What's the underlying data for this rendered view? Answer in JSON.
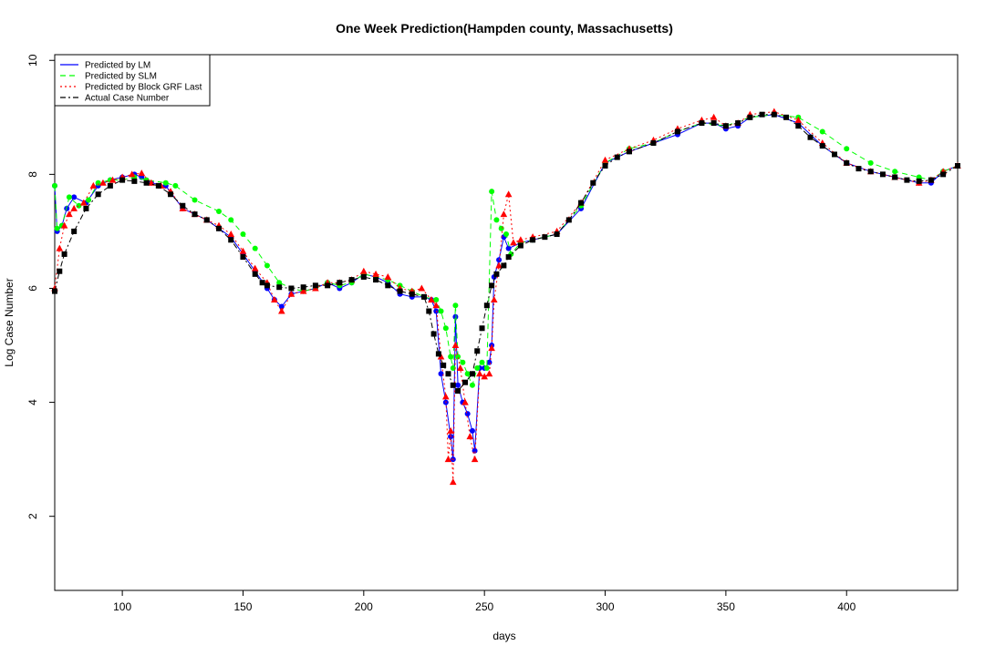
{
  "chart_data": {
    "type": "line",
    "title": "One Week Prediction(Hampden county, Massachusetts)",
    "xlabel": "days",
    "ylabel": "Log Case Number",
    "xlim": [
      72,
      446
    ],
    "ylim": [
      0.7,
      10.1
    ],
    "x_ticks": [
      100,
      150,
      200,
      250,
      300,
      350,
      400
    ],
    "y_ticks": [
      2,
      4,
      6,
      8,
      10
    ],
    "grid": false,
    "legend_position": "top-left",
    "series": [
      {
        "name": "Predicted by LM",
        "color": "#0000ff",
        "line_style": "solid",
        "marker": "circle",
        "points": [
          [
            72,
            7.8
          ],
          [
            73,
            7.0
          ],
          [
            75,
            7.1
          ],
          [
            77,
            7.4
          ],
          [
            80,
            7.6
          ],
          [
            85,
            7.5
          ],
          [
            90,
            7.8
          ],
          [
            95,
            7.9
          ],
          [
            100,
            7.95
          ],
          [
            105,
            8.0
          ],
          [
            108,
            7.95
          ],
          [
            112,
            7.85
          ],
          [
            118,
            7.8
          ],
          [
            125,
            7.4
          ],
          [
            130,
            7.3
          ],
          [
            135,
            7.2
          ],
          [
            140,
            7.05
          ],
          [
            145,
            6.9
          ],
          [
            150,
            6.6
          ],
          [
            155,
            6.3
          ],
          [
            160,
            6.0
          ],
          [
            163,
            5.8
          ],
          [
            166,
            5.68
          ],
          [
            170,
            5.9
          ],
          [
            175,
            5.95
          ],
          [
            180,
            6.0
          ],
          [
            185,
            6.1
          ],
          [
            190,
            6.0
          ],
          [
            195,
            6.1
          ],
          [
            200,
            6.25
          ],
          [
            205,
            6.2
          ],
          [
            210,
            6.1
          ],
          [
            215,
            5.9
          ],
          [
            220,
            5.85
          ],
          [
            225,
            5.85
          ],
          [
            228,
            5.8
          ],
          [
            230,
            5.6
          ],
          [
            232,
            4.5
          ],
          [
            234,
            4.0
          ],
          [
            236,
            3.4
          ],
          [
            237,
            3.0
          ],
          [
            238,
            5.5
          ],
          [
            239,
            4.3
          ],
          [
            241,
            4.0
          ],
          [
            243,
            3.8
          ],
          [
            245,
            3.5
          ],
          [
            246,
            3.15
          ],
          [
            248,
            4.6
          ],
          [
            250,
            4.6
          ],
          [
            252,
            4.7
          ],
          [
            253,
            5.0
          ],
          [
            254,
            6.2
          ],
          [
            256,
            6.5
          ],
          [
            258,
            6.9
          ],
          [
            260,
            6.7
          ],
          [
            265,
            6.8
          ],
          [
            270,
            6.85
          ],
          [
            280,
            6.95
          ],
          [
            290,
            7.4
          ],
          [
            300,
            8.2
          ],
          [
            310,
            8.4
          ],
          [
            320,
            8.55
          ],
          [
            330,
            8.7
          ],
          [
            340,
            8.9
          ],
          [
            345,
            8.9
          ],
          [
            350,
            8.8
          ],
          [
            355,
            8.85
          ],
          [
            360,
            9.0
          ],
          [
            370,
            9.05
          ],
          [
            380,
            8.9
          ],
          [
            390,
            8.5
          ],
          [
            400,
            8.2
          ],
          [
            410,
            8.05
          ],
          [
            420,
            7.95
          ],
          [
            430,
            7.85
          ],
          [
            435,
            7.85
          ],
          [
            440,
            8.05
          ],
          [
            446,
            8.15
          ]
        ]
      },
      {
        "name": "Predicted by SLM",
        "color": "#00ff00",
        "line_style": "dashed",
        "marker": "circle",
        "points": [
          [
            72,
            7.8
          ],
          [
            73,
            7.05
          ],
          [
            75,
            7.1
          ],
          [
            78,
            7.6
          ],
          [
            82,
            7.45
          ],
          [
            86,
            7.55
          ],
          [
            90,
            7.85
          ],
          [
            95,
            7.9
          ],
          [
            100,
            7.9
          ],
          [
            105,
            7.95
          ],
          [
            110,
            7.9
          ],
          [
            118,
            7.85
          ],
          [
            122,
            7.8
          ],
          [
            130,
            7.55
          ],
          [
            140,
            7.35
          ],
          [
            145,
            7.2
          ],
          [
            150,
            6.95
          ],
          [
            155,
            6.7
          ],
          [
            160,
            6.4
          ],
          [
            165,
            6.1
          ],
          [
            170,
            6.0
          ],
          [
            175,
            5.95
          ],
          [
            180,
            6.0
          ],
          [
            185,
            6.1
          ],
          [
            190,
            6.05
          ],
          [
            195,
            6.1
          ],
          [
            200,
            6.25
          ],
          [
            205,
            6.2
          ],
          [
            210,
            6.15
          ],
          [
            215,
            6.05
          ],
          [
            220,
            5.95
          ],
          [
            225,
            5.85
          ],
          [
            230,
            5.8
          ],
          [
            232,
            5.6
          ],
          [
            234,
            5.3
          ],
          [
            236,
            4.8
          ],
          [
            237,
            4.6
          ],
          [
            238,
            5.7
          ],
          [
            239,
            4.8
          ],
          [
            241,
            4.7
          ],
          [
            243,
            4.5
          ],
          [
            245,
            4.3
          ],
          [
            247,
            4.6
          ],
          [
            249,
            4.7
          ],
          [
            251,
            4.6
          ],
          [
            253,
            7.7
          ],
          [
            255,
            7.2
          ],
          [
            257,
            7.05
          ],
          [
            259,
            6.95
          ],
          [
            261,
            6.6
          ],
          [
            265,
            6.8
          ],
          [
            270,
            6.85
          ],
          [
            280,
            6.95
          ],
          [
            290,
            7.45
          ],
          [
            300,
            8.2
          ],
          [
            310,
            8.45
          ],
          [
            320,
            8.55
          ],
          [
            330,
            8.75
          ],
          [
            340,
            8.9
          ],
          [
            350,
            8.85
          ],
          [
            360,
            9.0
          ],
          [
            370,
            9.05
          ],
          [
            380,
            9.0
          ],
          [
            390,
            8.75
          ],
          [
            400,
            8.45
          ],
          [
            410,
            8.2
          ],
          [
            420,
            8.05
          ],
          [
            430,
            7.95
          ],
          [
            435,
            7.9
          ],
          [
            440,
            8.05
          ],
          [
            446,
            8.15
          ]
        ]
      },
      {
        "name": "Predicted by Block GRF Last",
        "color": "#ff0000",
        "line_style": "dotted",
        "marker": "triangle",
        "points": [
          [
            72,
            6.0
          ],
          [
            74,
            6.7
          ],
          [
            76,
            7.1
          ],
          [
            78,
            7.3
          ],
          [
            80,
            7.4
          ],
          [
            84,
            7.5
          ],
          [
            88,
            7.8
          ],
          [
            92,
            7.85
          ],
          [
            96,
            7.9
          ],
          [
            100,
            7.95
          ],
          [
            104,
            8.0
          ],
          [
            108,
            8.02
          ],
          [
            112,
            7.85
          ],
          [
            116,
            7.8
          ],
          [
            120,
            7.7
          ],
          [
            125,
            7.4
          ],
          [
            130,
            7.3
          ],
          [
            135,
            7.2
          ],
          [
            140,
            7.1
          ],
          [
            145,
            6.95
          ],
          [
            150,
            6.65
          ],
          [
            155,
            6.35
          ],
          [
            160,
            6.1
          ],
          [
            163,
            5.8
          ],
          [
            166,
            5.6
          ],
          [
            170,
            5.9
          ],
          [
            175,
            5.95
          ],
          [
            180,
            6.0
          ],
          [
            185,
            6.1
          ],
          [
            190,
            6.1
          ],
          [
            195,
            6.15
          ],
          [
            200,
            6.3
          ],
          [
            205,
            6.25
          ],
          [
            210,
            6.2
          ],
          [
            215,
            6.0
          ],
          [
            220,
            5.95
          ],
          [
            224,
            6.0
          ],
          [
            228,
            5.8
          ],
          [
            230,
            5.7
          ],
          [
            232,
            4.8
          ],
          [
            234,
            4.1
          ],
          [
            235,
            3.0
          ],
          [
            236,
            3.5
          ],
          [
            237,
            2.6
          ],
          [
            238,
            5.0
          ],
          [
            240,
            4.6
          ],
          [
            242,
            4.0
          ],
          [
            244,
            3.4
          ],
          [
            246,
            3.0
          ],
          [
            248,
            4.5
          ],
          [
            250,
            4.45
          ],
          [
            252,
            4.5
          ],
          [
            253,
            4.95
          ],
          [
            254,
            5.8
          ],
          [
            256,
            6.4
          ],
          [
            258,
            7.3
          ],
          [
            260,
            7.65
          ],
          [
            262,
            6.8
          ],
          [
            265,
            6.85
          ],
          [
            270,
            6.9
          ],
          [
            280,
            7.0
          ],
          [
            290,
            7.5
          ],
          [
            300,
            8.25
          ],
          [
            310,
            8.45
          ],
          [
            320,
            8.6
          ],
          [
            330,
            8.8
          ],
          [
            340,
            8.95
          ],
          [
            345,
            9.0
          ],
          [
            350,
            8.85
          ],
          [
            355,
            8.9
          ],
          [
            360,
            9.05
          ],
          [
            370,
            9.1
          ],
          [
            380,
            8.95
          ],
          [
            390,
            8.55
          ],
          [
            400,
            8.2
          ],
          [
            410,
            8.05
          ],
          [
            420,
            7.95
          ],
          [
            430,
            7.85
          ],
          [
            435,
            7.9
          ],
          [
            440,
            8.05
          ],
          [
            446,
            8.15
          ]
        ]
      },
      {
        "name": "Actual Case Number",
        "color": "#000000",
        "line_style": "dashdot",
        "marker": "square",
        "points": [
          [
            72,
            5.95
          ],
          [
            74,
            6.3
          ],
          [
            76,
            6.6
          ],
          [
            80,
            7.0
          ],
          [
            85,
            7.4
          ],
          [
            90,
            7.65
          ],
          [
            95,
            7.8
          ],
          [
            100,
            7.9
          ],
          [
            105,
            7.88
          ],
          [
            110,
            7.85
          ],
          [
            115,
            7.8
          ],
          [
            120,
            7.65
          ],
          [
            125,
            7.45
          ],
          [
            130,
            7.3
          ],
          [
            135,
            7.2
          ],
          [
            140,
            7.05
          ],
          [
            145,
            6.85
          ],
          [
            150,
            6.55
          ],
          [
            155,
            6.25
          ],
          [
            158,
            6.1
          ],
          [
            160,
            6.05
          ],
          [
            165,
            6.02
          ],
          [
            170,
            6.0
          ],
          [
            175,
            6.02
          ],
          [
            180,
            6.05
          ],
          [
            185,
            6.05
          ],
          [
            190,
            6.1
          ],
          [
            195,
            6.15
          ],
          [
            200,
            6.2
          ],
          [
            205,
            6.15
          ],
          [
            210,
            6.05
          ],
          [
            215,
            5.95
          ],
          [
            220,
            5.9
          ],
          [
            225,
            5.85
          ],
          [
            227,
            5.6
          ],
          [
            229,
            5.2
          ],
          [
            231,
            4.85
          ],
          [
            233,
            4.65
          ],
          [
            235,
            4.5
          ],
          [
            237,
            4.3
          ],
          [
            239,
            4.2
          ],
          [
            242,
            4.35
          ],
          [
            245,
            4.5
          ],
          [
            247,
            4.9
          ],
          [
            249,
            5.3
          ],
          [
            251,
            5.7
          ],
          [
            253,
            6.05
          ],
          [
            255,
            6.25
          ],
          [
            258,
            6.4
          ],
          [
            260,
            6.55
          ],
          [
            265,
            6.75
          ],
          [
            270,
            6.85
          ],
          [
            275,
            6.9
          ],
          [
            280,
            6.95
          ],
          [
            285,
            7.2
          ],
          [
            290,
            7.5
          ],
          [
            295,
            7.85
          ],
          [
            300,
            8.15
          ],
          [
            305,
            8.3
          ],
          [
            310,
            8.4
          ],
          [
            320,
            8.55
          ],
          [
            330,
            8.75
          ],
          [
            340,
            8.9
          ],
          [
            345,
            8.9
          ],
          [
            350,
            8.85
          ],
          [
            355,
            8.9
          ],
          [
            360,
            9.0
          ],
          [
            365,
            9.05
          ],
          [
            370,
            9.05
          ],
          [
            375,
            9.0
          ],
          [
            380,
            8.85
          ],
          [
            385,
            8.65
          ],
          [
            390,
            8.5
          ],
          [
            395,
            8.35
          ],
          [
            400,
            8.2
          ],
          [
            405,
            8.1
          ],
          [
            410,
            8.05
          ],
          [
            415,
            8.0
          ],
          [
            420,
            7.95
          ],
          [
            425,
            7.9
          ],
          [
            430,
            7.88
          ],
          [
            435,
            7.9
          ],
          [
            440,
            8.0
          ],
          [
            446,
            8.15
          ]
        ]
      }
    ]
  }
}
